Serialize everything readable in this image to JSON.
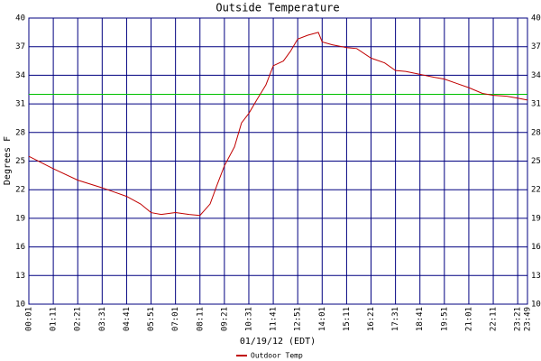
{
  "chart_data": {
    "type": "line",
    "title": "Outside Temperature",
    "x_label": "01/19/12 (EDT)",
    "y_label": "Degrees F",
    "xlim": [
      "00:01",
      "23:49"
    ],
    "xticks": [
      "00:01",
      "01:11",
      "02:21",
      "03:31",
      "04:41",
      "05:51",
      "07:01",
      "08:11",
      "09:21",
      "10:31",
      "11:41",
      "12:51",
      "14:01",
      "15:11",
      "16:21",
      "17:31",
      "18:41",
      "19:51",
      "21:01",
      "22:11",
      "23:21",
      "23:49"
    ],
    "ylim": [
      10,
      40
    ],
    "yticks": [
      10,
      13,
      16,
      19,
      22,
      25,
      28,
      31,
      34,
      37,
      40
    ],
    "y2lim": [
      10,
      40
    ],
    "y2ticks": [
      10,
      13,
      16,
      19,
      22,
      25,
      28,
      31,
      34,
      37,
      40
    ],
    "grid": true,
    "grid_color": "#000080",
    "reference_line": 32,
    "reference_color": "#00c000",
    "legend": "bottom",
    "series": [
      {
        "name": "Outdoor Temp",
        "color": "#c00000",
        "x": [
          "00:01",
          "01:11",
          "02:21",
          "03:31",
          "04:41",
          "05:21",
          "05:51",
          "06:20",
          "07:01",
          "07:40",
          "08:11",
          "08:40",
          "09:00",
          "09:21",
          "09:50",
          "10:10",
          "10:31",
          "10:55",
          "11:20",
          "11:41",
          "12:10",
          "12:30",
          "12:51",
          "13:20",
          "13:50",
          "14:01",
          "14:30",
          "15:11",
          "15:40",
          "16:21",
          "17:00",
          "17:31",
          "18:00",
          "18:41",
          "19:20",
          "19:51",
          "20:30",
          "21:01",
          "21:40",
          "22:11",
          "22:50",
          "23:21",
          "23:49"
        ],
        "values": [
          25.5,
          24.2,
          23.0,
          22.2,
          21.3,
          20.5,
          19.6,
          19.4,
          19.6,
          19.4,
          19.3,
          20.5,
          22.5,
          24.5,
          26.5,
          29.0,
          30.0,
          31.5,
          33.0,
          35.0,
          35.5,
          36.5,
          37.8,
          38.2,
          38.5,
          37.5,
          37.2,
          36.9,
          36.8,
          35.8,
          35.3,
          34.5,
          34.4,
          34.1,
          33.8,
          33.6,
          33.1,
          32.7,
          32.1,
          31.9,
          31.8,
          31.6,
          31.4
        ]
      }
    ]
  }
}
